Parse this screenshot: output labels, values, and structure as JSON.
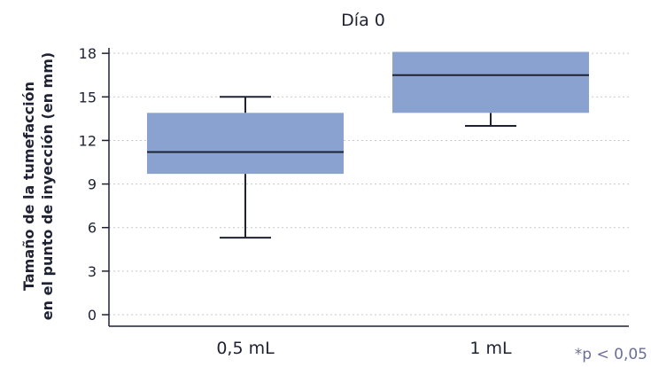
{
  "chart_data": {
    "type": "box",
    "title": "Día 0",
    "ylabel_lines": [
      "Tamaño de la tumefacción",
      "en el punto de inyección (en mm)"
    ],
    "xlabel": "",
    "ylim": [
      0,
      18.6
    ],
    "yticks": [
      0,
      3,
      6,
      9,
      12,
      15,
      18
    ],
    "ytick_labels": [
      "0",
      "3",
      "6",
      "9",
      "12",
      "15",
      "18"
    ],
    "grid": true,
    "categories": [
      "0,5 mL",
      "1 mL"
    ],
    "boxes": [
      {
        "category": "0,5 mL",
        "whisker_low": 5.3,
        "q1": 9.7,
        "median": 11.2,
        "q3": 13.9,
        "whisker_high": 15.0
      },
      {
        "category": "1 mL",
        "whisker_low": 13.0,
        "q1": 13.9,
        "median": 16.5,
        "q3": 18.1,
        "whisker_high": 18.1
      }
    ],
    "box_color": "#8aa2d0",
    "line_color": "#1f2233",
    "grid_color": "#c8c8c8",
    "footnote": "*p < 0,05"
  }
}
